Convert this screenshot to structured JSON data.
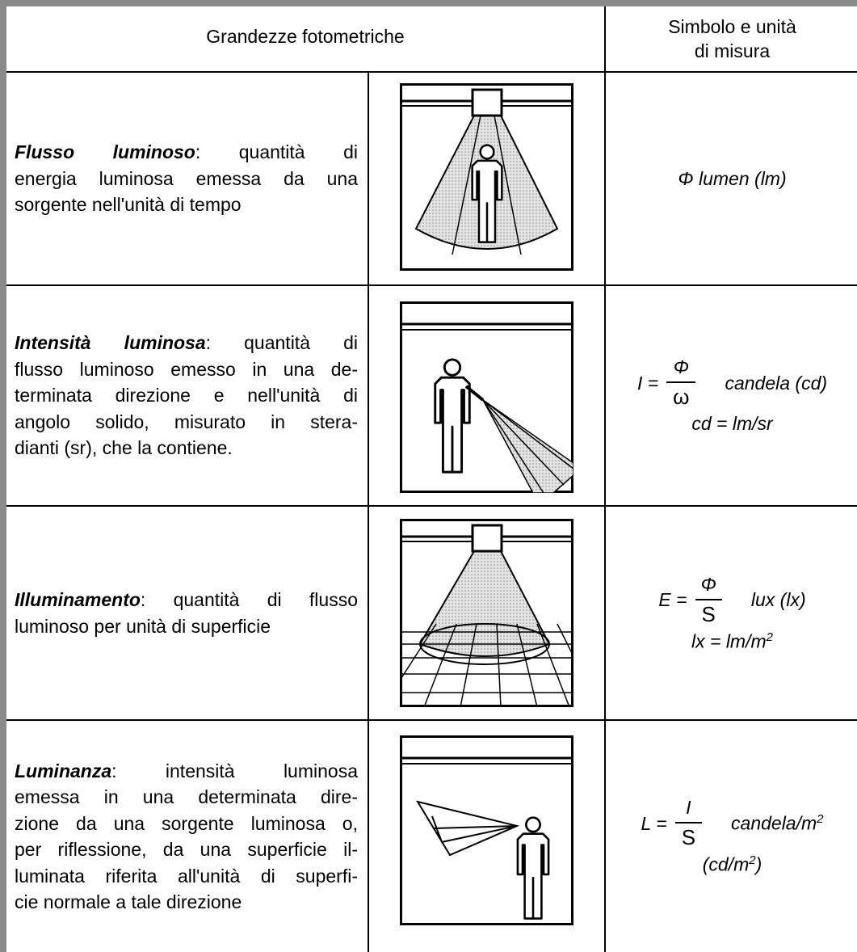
{
  "table": {
    "headers": [
      [
        "Grandezze fotometriche"
      ],
      [
        "Simbolo e unità",
        "di misura"
      ]
    ],
    "rows": [
      {
        "term": "Flusso luminoso",
        "definition_lines": [
          ": quantità di",
          "energia luminosa emessa da una",
          "sorgente nell'unità di tempo"
        ],
        "symbol": {
          "unit": [
            {
              "text": "Φ lumen (lm)"
            }
          ]
        }
      },
      {
        "term": "Intensità luminosa",
        "definition_lines": [
          ": quantità di",
          "flusso luminoso emesso in una de-",
          "terminata direzione e nell'unità di",
          "angolo solido, misurato in stera-",
          "dianti (sr), che la contiene."
        ],
        "symbol": {
          "lhs": "I =",
          "numerator": "Φ",
          "denominator": "ω",
          "unit": [
            {
              "text": "candela (cd)"
            }
          ],
          "note": [
            {
              "text": "cd = lm/sr"
            }
          ]
        }
      },
      {
        "term": "Illuminamento",
        "definition_lines": [
          ": quantità di flusso",
          "luminoso per unità di superficie"
        ],
        "symbol": {
          "lhs": "E =",
          "numerator": "Φ",
          "denominator": "S",
          "unit": [
            {
              "text": "lux (lx)"
            }
          ],
          "note": [
            {
              "text": "lx = lm/m"
            },
            {
              "sup": "2"
            }
          ]
        }
      },
      {
        "term": "Luminanza",
        "definition_lines": [
          ": intensità luminosa",
          "emessa in una determinata dire-",
          "zione da una sorgente luminosa o,",
          "per riflessione, da una superficie il-",
          "luminata riferita all'unità di superfi-",
          "cie normale a tale direzione"
        ],
        "symbol": {
          "lhs": "L =",
          "numerator": "I",
          "denominator": "S",
          "unit": [
            {
              "text": "candela/m"
            },
            {
              "sup": "2"
            }
          ],
          "note": [
            {
              "text": "(cd/m"
            },
            {
              "sup": "2"
            },
            {
              "text": ")"
            }
          ]
        }
      }
    ]
  }
}
